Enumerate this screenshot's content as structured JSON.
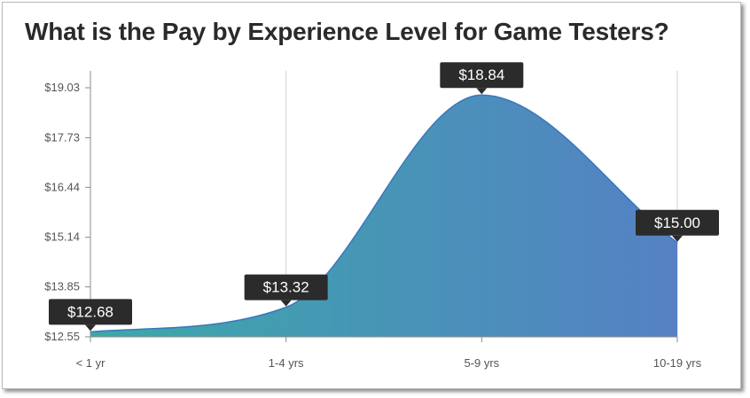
{
  "chart_data": {
    "type": "area",
    "title": "What is the Pay by Experience Level for Game Testers?",
    "xlabel": "",
    "ylabel": "",
    "categories": [
      "< 1 yr",
      "1-4 yrs",
      "5-9 yrs",
      "10-19 yrs"
    ],
    "values": [
      12.68,
      13.32,
      18.84,
      15.0
    ],
    "data_labels": [
      "$12.68",
      "$13.32",
      "$18.84",
      "$15.00"
    ],
    "y_ticks": [
      12.55,
      13.85,
      15.14,
      16.44,
      17.73,
      19.03
    ],
    "y_tick_labels": [
      "$12.55",
      "$13.85",
      "$15.14",
      "$16.44",
      "$17.73",
      "$19.03"
    ],
    "ylim": [
      12.55,
      19.03
    ],
    "grid": "vertical",
    "legend": "none",
    "colors": {
      "gradient_start": "#3aa9a9",
      "gradient_end": "#5581c4",
      "line": "#3a76bd",
      "label_bg": "#2b2b2b",
      "grid": "#d2d2d2",
      "axis": "#8a8a8a"
    }
  }
}
